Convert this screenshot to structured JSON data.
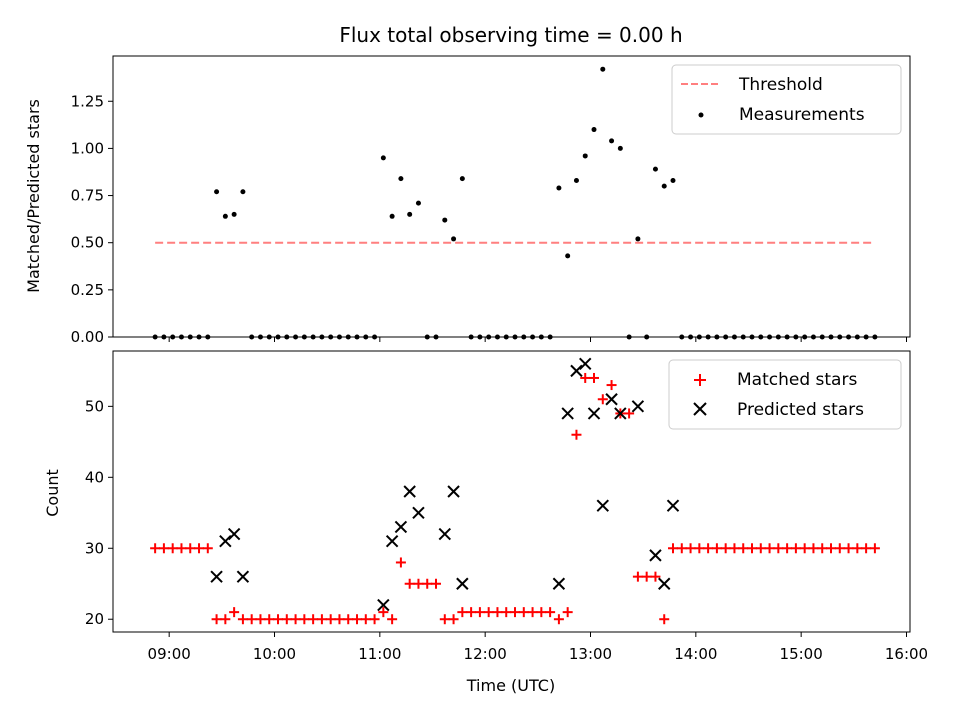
{
  "chart_data": [
    {
      "type": "scatter",
      "title": "Flux total observing time = 0.00 h",
      "xlabel": "",
      "ylabel": "Matched/Predicted stars",
      "xlim": [
        "08:28",
        "16:02"
      ],
      "ylim": [
        0,
        1.49
      ],
      "xticks": [
        "09:00",
        "10:00",
        "11:00",
        "12:00",
        "13:00",
        "14:00",
        "15:00",
        "16:00"
      ],
      "yticks": [
        "0.00",
        "0.25",
        "0.50",
        "0.75",
        "1.00",
        "1.25"
      ],
      "grid": false,
      "legend_position": "top-right",
      "threshold": {
        "name": "Threshold",
        "value": 0.5,
        "x_start": "08:52",
        "x_end": "15:42",
        "color": "#ff7f7f",
        "style": "dashed"
      },
      "series": [
        {
          "name": "Measurements",
          "marker": "dot",
          "color": "#000000",
          "points": [
            [
              "08:52",
              0
            ],
            [
              "08:57",
              0
            ],
            [
              "09:02",
              0
            ],
            [
              "09:07",
              0
            ],
            [
              "09:12",
              0
            ],
            [
              "09:17",
              0
            ],
            [
              "09:22",
              0
            ],
            [
              "09:27",
              0.77
            ],
            [
              "09:32",
              0.64
            ],
            [
              "09:37",
              0.65
            ],
            [
              "09:42",
              0.77
            ],
            [
              "09:47",
              0
            ],
            [
              "09:52",
              0
            ],
            [
              "09:57",
              0
            ],
            [
              "10:02",
              0
            ],
            [
              "10:07",
              0
            ],
            [
              "10:12",
              0
            ],
            [
              "10:17",
              0
            ],
            [
              "10:22",
              0
            ],
            [
              "10:27",
              0
            ],
            [
              "10:32",
              0
            ],
            [
              "10:37",
              0
            ],
            [
              "10:42",
              0
            ],
            [
              "10:47",
              0
            ],
            [
              "10:52",
              0
            ],
            [
              "10:57",
              0
            ],
            [
              "11:02",
              0.95
            ],
            [
              "11:07",
              0.64
            ],
            [
              "11:12",
              0.84
            ],
            [
              "11:17",
              0.65
            ],
            [
              "11:22",
              0.71
            ],
            [
              "11:27",
              0
            ],
            [
              "11:32",
              0
            ],
            [
              "11:37",
              0.62
            ],
            [
              "11:42",
              0.52
            ],
            [
              "11:47",
              0.84
            ],
            [
              "11:52",
              0
            ],
            [
              "11:57",
              0
            ],
            [
              "12:02",
              0
            ],
            [
              "12:07",
              0
            ],
            [
              "12:12",
              0
            ],
            [
              "12:17",
              0
            ],
            [
              "12:22",
              0
            ],
            [
              "12:27",
              0
            ],
            [
              "12:32",
              0
            ],
            [
              "12:37",
              0
            ],
            [
              "12:42",
              0.79
            ],
            [
              "12:47",
              0.43
            ],
            [
              "12:52",
              0.83
            ],
            [
              "12:57",
              0.96
            ],
            [
              "13:02",
              1.1
            ],
            [
              "13:07",
              1.42
            ],
            [
              "13:12",
              1.04
            ],
            [
              "13:17",
              1.0
            ],
            [
              "13:22",
              0
            ],
            [
              "13:27",
              0.52
            ],
            [
              "13:32",
              0
            ],
            [
              "13:37",
              0.89
            ],
            [
              "13:42",
              0.8
            ],
            [
              "13:47",
              0.83
            ],
            [
              "13:52",
              0
            ],
            [
              "13:57",
              0
            ],
            [
              "14:02",
              0
            ],
            [
              "14:07",
              0
            ],
            [
              "14:12",
              0
            ],
            [
              "14:17",
              0
            ],
            [
              "14:22",
              0
            ],
            [
              "14:27",
              0
            ],
            [
              "14:32",
              0
            ],
            [
              "14:37",
              0
            ],
            [
              "14:42",
              0
            ],
            [
              "14:47",
              0
            ],
            [
              "14:52",
              0
            ],
            [
              "14:57",
              0
            ],
            [
              "15:02",
              0
            ],
            [
              "15:07",
              0
            ],
            [
              "15:12",
              0
            ],
            [
              "15:17",
              0
            ],
            [
              "15:22",
              0
            ],
            [
              "15:27",
              0
            ],
            [
              "15:32",
              0
            ],
            [
              "15:37",
              0
            ],
            [
              "15:42",
              0
            ]
          ]
        }
      ]
    },
    {
      "type": "scatter",
      "title": "",
      "xlabel": "Time (UTC)",
      "ylabel": "Count",
      "xlim": [
        "08:28",
        "16:02"
      ],
      "ylim": [
        18.2,
        57.8
      ],
      "xticks": [
        "09:00",
        "10:00",
        "11:00",
        "12:00",
        "13:00",
        "14:00",
        "15:00",
        "16:00"
      ],
      "yticks": [
        "20",
        "30",
        "40",
        "50"
      ],
      "grid": false,
      "legend_position": "top-right",
      "series": [
        {
          "name": "Matched stars",
          "marker": "plus",
          "color": "#ff0000",
          "points": [
            [
              "08:52",
              30
            ],
            [
              "08:57",
              30
            ],
            [
              "09:02",
              30
            ],
            [
              "09:07",
              30
            ],
            [
              "09:12",
              30
            ],
            [
              "09:17",
              30
            ],
            [
              "09:22",
              30
            ],
            [
              "09:27",
              20
            ],
            [
              "09:32",
              20
            ],
            [
              "09:37",
              21
            ],
            [
              "09:42",
              20
            ],
            [
              "09:47",
              20
            ],
            [
              "09:52",
              20
            ],
            [
              "09:57",
              20
            ],
            [
              "10:02",
              20
            ],
            [
              "10:07",
              20
            ],
            [
              "10:12",
              20
            ],
            [
              "10:17",
              20
            ],
            [
              "10:22",
              20
            ],
            [
              "10:27",
              20
            ],
            [
              "10:32",
              20
            ],
            [
              "10:37",
              20
            ],
            [
              "10:42",
              20
            ],
            [
              "10:47",
              20
            ],
            [
              "10:52",
              20
            ],
            [
              "10:57",
              20
            ],
            [
              "11:02",
              21
            ],
            [
              "11:07",
              20
            ],
            [
              "11:12",
              28
            ],
            [
              "11:17",
              25
            ],
            [
              "11:22",
              25
            ],
            [
              "11:27",
              25
            ],
            [
              "11:32",
              25
            ],
            [
              "11:37",
              20
            ],
            [
              "11:42",
              20
            ],
            [
              "11:47",
              21
            ],
            [
              "11:52",
              21
            ],
            [
              "11:57",
              21
            ],
            [
              "12:02",
              21
            ],
            [
              "12:07",
              21
            ],
            [
              "12:12",
              21
            ],
            [
              "12:17",
              21
            ],
            [
              "12:22",
              21
            ],
            [
              "12:27",
              21
            ],
            [
              "12:32",
              21
            ],
            [
              "12:37",
              21
            ],
            [
              "12:42",
              20
            ],
            [
              "12:47",
              21
            ],
            [
              "12:52",
              46
            ],
            [
              "12:57",
              54
            ],
            [
              "13:02",
              54
            ],
            [
              "13:07",
              51
            ],
            [
              "13:12",
              53
            ],
            [
              "13:17",
              49
            ],
            [
              "13:22",
              49
            ],
            [
              "13:27",
              26
            ],
            [
              "13:32",
              26
            ],
            [
              "13:37",
              26
            ],
            [
              "13:42",
              20
            ],
            [
              "13:47",
              30
            ],
            [
              "13:52",
              30
            ],
            [
              "13:57",
              30
            ],
            [
              "14:02",
              30
            ],
            [
              "14:07",
              30
            ],
            [
              "14:12",
              30
            ],
            [
              "14:17",
              30
            ],
            [
              "14:22",
              30
            ],
            [
              "14:27",
              30
            ],
            [
              "14:32",
              30
            ],
            [
              "14:37",
              30
            ],
            [
              "14:42",
              30
            ],
            [
              "14:47",
              30
            ],
            [
              "14:52",
              30
            ],
            [
              "14:57",
              30
            ],
            [
              "15:02",
              30
            ],
            [
              "15:07",
              30
            ],
            [
              "15:12",
              30
            ],
            [
              "15:17",
              30
            ],
            [
              "15:22",
              30
            ],
            [
              "15:27",
              30
            ],
            [
              "15:32",
              30
            ],
            [
              "15:37",
              30
            ],
            [
              "15:42",
              30
            ]
          ]
        },
        {
          "name": "Predicted stars",
          "marker": "x",
          "color": "#000000",
          "points": [
            [
              "09:27",
              26
            ],
            [
              "09:32",
              31
            ],
            [
              "09:37",
              32
            ],
            [
              "09:42",
              26
            ],
            [
              "11:02",
              22
            ],
            [
              "11:07",
              31
            ],
            [
              "11:12",
              33
            ],
            [
              "11:17",
              38
            ],
            [
              "11:22",
              35
            ],
            [
              "11:37",
              32
            ],
            [
              "11:42",
              38
            ],
            [
              "11:47",
              25
            ],
            [
              "12:42",
              25
            ],
            [
              "12:47",
              49
            ],
            [
              "12:52",
              55
            ],
            [
              "12:57",
              56
            ],
            [
              "13:02",
              49
            ],
            [
              "13:07",
              36
            ],
            [
              "13:12",
              51
            ],
            [
              "13:17",
              49
            ],
            [
              "13:27",
              50
            ],
            [
              "13:37",
              29
            ],
            [
              "13:42",
              25
            ],
            [
              "13:47",
              36
            ]
          ]
        }
      ]
    }
  ]
}
